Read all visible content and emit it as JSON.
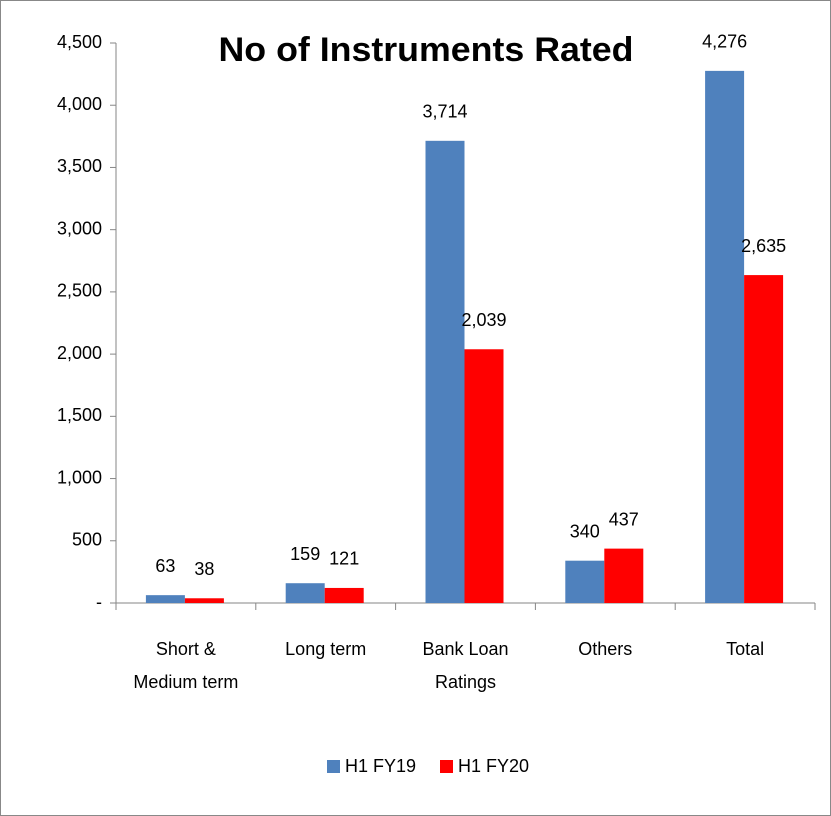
{
  "chart_data": {
    "type": "bar",
    "title": "No of Instruments Rated",
    "categories": [
      [
        "Short &",
        "Medium term"
      ],
      [
        "Long term"
      ],
      [
        "Bank Loan",
        "Ratings"
      ],
      [
        "Others"
      ],
      [
        "Total"
      ]
    ],
    "series": [
      {
        "name": "H1 FY19",
        "color": "#4f81bd",
        "values": [
          63,
          159,
          3714,
          340,
          4276
        ],
        "value_labels": [
          "63",
          "159",
          "3,714",
          "340",
          "4,276"
        ]
      },
      {
        "name": "H1 FY20",
        "color": "#ff0000",
        "values": [
          38,
          121,
          2039,
          437,
          2635
        ],
        "value_labels": [
          "38",
          "121",
          "2,039",
          "437",
          "2,635"
        ]
      }
    ],
    "ylim": [
      0,
      4500
    ],
    "yticks": [
      {
        "value": 0,
        "label": "-"
      },
      500,
      {
        "value": 1000,
        "label": "1,000"
      },
      {
        "value": 1500,
        "label": "1,500"
      },
      {
        "value": 2000,
        "label": "2,000"
      },
      {
        "value": 2500,
        "label": "2,500"
      },
      {
        "value": 3000,
        "label": "3,000"
      },
      {
        "value": 3500,
        "label": "3,500"
      },
      {
        "value": 4000,
        "label": "4,000"
      },
      {
        "value": 4500,
        "label": "4,500"
      }
    ],
    "legend": "bottom"
  }
}
